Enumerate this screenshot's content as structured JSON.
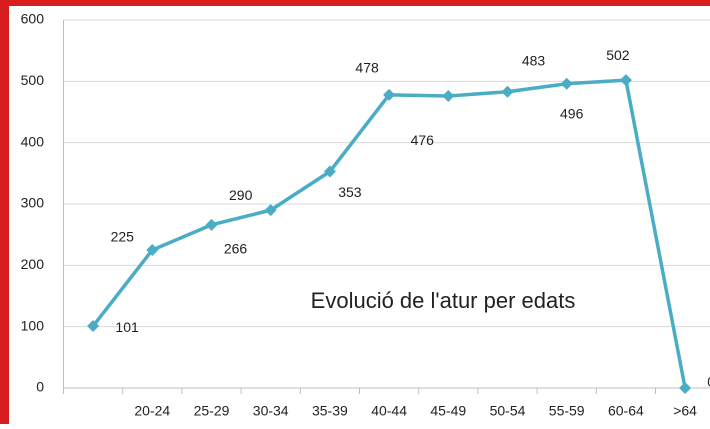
{
  "chart_data": {
    "type": "line",
    "title": "Evolució de l'atur per edats",
    "categories": [
      null,
      "20-24",
      "25-29",
      "30-34",
      "35-39",
      "40-44",
      "45-49",
      "50-54",
      "55-59",
      "60-64",
      ">64"
    ],
    "values": [
      101,
      225,
      266,
      290,
      353,
      478,
      476,
      483,
      496,
      502,
      0
    ],
    "color": "#4bacc6",
    "ylim": [
      0,
      600
    ],
    "yticks": [
      0,
      100,
      200,
      300,
      400,
      500,
      600
    ],
    "grid": true
  }
}
